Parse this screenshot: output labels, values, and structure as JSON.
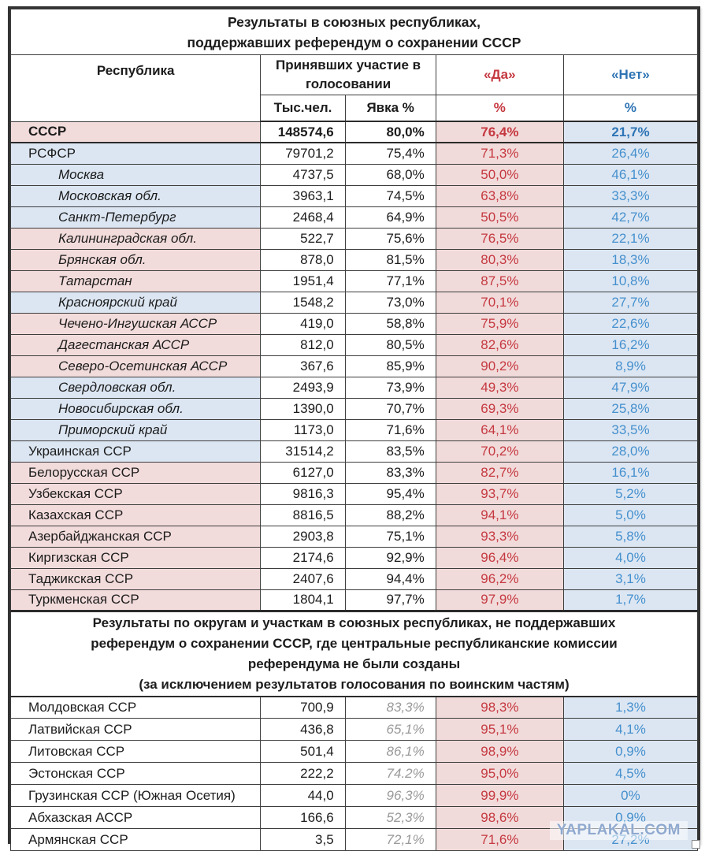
{
  "watermark": "YAPLAKAL.COM",
  "colors": {
    "yes_text": "#c53840",
    "no_text": "#4590ce",
    "yes_bg": "#f1dbda",
    "no_bg": "#dce6f2",
    "row_pink_bg": "#f2dcdb",
    "row_blue_bg": "#dce6f2"
  },
  "section1": {
    "title_line1": "Результаты в союзных республиках,",
    "title_line2": "поддержавших референдум о сохранении СССР",
    "col_republic": "Республика",
    "col_participated": "Принявших участие в голосовании",
    "col_thousands": "Тыс.чел.",
    "col_turnout": "Явка %",
    "col_yes": "«Да»",
    "col_no": "«Нет»",
    "col_pct_yes": "%",
    "col_pct_no": "%",
    "rows": [
      {
        "name": "СССР",
        "thousands": "148574,6",
        "turnout": "80,0%",
        "yes": "76,4%",
        "no": "21,7%"
      },
      {
        "name": "РСФСР",
        "thousands": "79701,2",
        "turnout": "75,4%",
        "yes": "71,3%",
        "no": "26,4%"
      },
      {
        "name": "Москва",
        "thousands": "4737,5",
        "turnout": "68,0%",
        "yes": "50,0%",
        "no": "46,1%"
      },
      {
        "name": "Московская обл.",
        "thousands": "3963,1",
        "turnout": "74,5%",
        "yes": "63,8%",
        "no": "33,3%"
      },
      {
        "name": "Санкт-Петербург",
        "thousands": "2468,4",
        "turnout": "64,9%",
        "yes": "50,5%",
        "no": "42,7%"
      },
      {
        "name": "Калининградская обл.",
        "thousands": "522,7",
        "turnout": "75,6%",
        "yes": "76,5%",
        "no": "22,1%"
      },
      {
        "name": "Брянская обл.",
        "thousands": "878,0",
        "turnout": "81,5%",
        "yes": "80,3%",
        "no": "18,3%"
      },
      {
        "name": "Татарстан",
        "thousands": "1951,4",
        "turnout": "77,1%",
        "yes": "87,5%",
        "no": "10,8%"
      },
      {
        "name": "Красноярский край",
        "thousands": "1548,2",
        "turnout": "73,0%",
        "yes": "70,1%",
        "no": "27,7%"
      },
      {
        "name": "Чечено-Ингушская АССР",
        "thousands": "419,0",
        "turnout": "58,8%",
        "yes": "75,9%",
        "no": "22,6%"
      },
      {
        "name": "Дагестанская АССР",
        "thousands": "812,0",
        "turnout": "80,5%",
        "yes": "82,6%",
        "no": "16,2%"
      },
      {
        "name": "Северо-Осетинская АССР",
        "thousands": "367,6",
        "turnout": "85,9%",
        "yes": "90,2%",
        "no": "8,9%"
      },
      {
        "name": "Свердловская обл.",
        "thousands": "2493,9",
        "turnout": "73,9%",
        "yes": "49,3%",
        "no": "47,9%"
      },
      {
        "name": "Новосибирская обл.",
        "thousands": "1390,0",
        "turnout": "70,7%",
        "yes": "69,3%",
        "no": "25,8%"
      },
      {
        "name": "Приморский край",
        "thousands": "1173,0",
        "turnout": "71,6%",
        "yes": "64,1%",
        "no": "33,5%"
      },
      {
        "name": "Украинская ССР",
        "thousands": "31514,2",
        "turnout": "83,5%",
        "yes": "70,2%",
        "no": "28,0%"
      },
      {
        "name": "Белорусская ССР",
        "thousands": "6127,0",
        "turnout": "83,3%",
        "yes": "82,7%",
        "no": "16,1%"
      },
      {
        "name": "Узбекская ССР",
        "thousands": "9816,3",
        "turnout": "95,4%",
        "yes": "93,7%",
        "no": "5,2%"
      },
      {
        "name": "Казахская ССР",
        "thousands": "8816,5",
        "turnout": "88,2%",
        "yes": "94,1%",
        "no": "5,0%"
      },
      {
        "name": "Азербайджанская ССР",
        "thousands": "2903,8",
        "turnout": "75,1%",
        "yes": "93,3%",
        "no": "5,8%"
      },
      {
        "name": "Киргизская ССР",
        "thousands": "2174,6",
        "turnout": "92,9%",
        "yes": "96,4%",
        "no": "4,0%"
      },
      {
        "name": "Таджикская ССР",
        "thousands": "2407,6",
        "turnout": "94,4%",
        "yes": "96,2%",
        "no": "3,1%"
      },
      {
        "name": "Туркменская ССР",
        "thousands": "1804,1",
        "turnout": "97,7%",
        "yes": "97,9%",
        "no": "1,7%"
      }
    ]
  },
  "section2": {
    "title": "Результаты по округам и участкам в союзных республиках, не поддержавших референдум о сохранении СССР, где центральные республиканские комиссии референдума не были созданы",
    "title_note": "(за исключением результатов голосования по воинским частям)",
    "rows": [
      {
        "name": "Молдовская ССР",
        "thousands": "700,9",
        "turnout": "83,3%",
        "yes": "98,3%",
        "no": "1,3%"
      },
      {
        "name": "Латвийская ССР",
        "thousands": "436,8",
        "turnout": "65,1%",
        "yes": "95,1%",
        "no": "4,1%"
      },
      {
        "name": "Литовская ССР",
        "thousands": "501,4",
        "turnout": "86,1%",
        "yes": "98,9%",
        "no": "0,9%"
      },
      {
        "name": "Эстонская ССР",
        "thousands": "222,2",
        "turnout": "74.2%",
        "yes": "95,0%",
        "no": "4,5%"
      },
      {
        "name": "Грузинская ССР (Южная Осетия)",
        "thousands": "44,0",
        "turnout": "96,3%",
        "yes": "99,9%",
        "no": "0%"
      },
      {
        "name": "Абхазская АССР",
        "thousands": "166,6",
        "turnout": "52,3%",
        "yes": "98,6%",
        "no": "0,9%"
      },
      {
        "name": "Армянская ССР",
        "thousands": "3,5",
        "turnout": "72,1%",
        "yes": "71,6%",
        "no": "27,2%"
      }
    ]
  }
}
